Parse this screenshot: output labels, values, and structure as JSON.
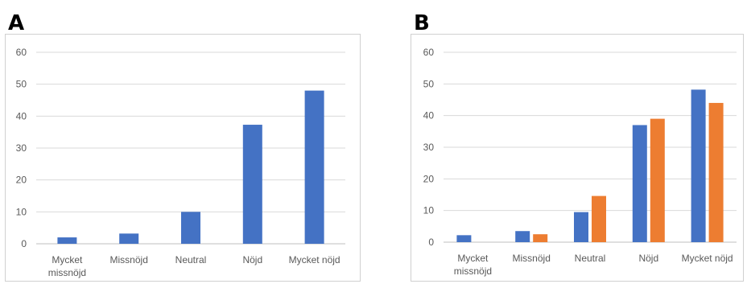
{
  "panels": [
    {
      "letter": "A"
    },
    {
      "letter": "B"
    }
  ],
  "chart_data": [
    {
      "type": "bar",
      "title": "",
      "categories": [
        [
          "Mycket",
          "missnöjd"
        ],
        [
          "Missnöjd"
        ],
        [
          "Neutral"
        ],
        [
          "Nöjd"
        ],
        [
          "Mycket nöjd"
        ]
      ],
      "series": [
        {
          "color": "#4472C4",
          "values": [
            2,
            3.2,
            10,
            37.3,
            48
          ]
        }
      ],
      "ylim": [
        0,
        60
      ],
      "yticks": [
        0,
        10,
        20,
        30,
        40,
        50,
        60
      ],
      "grid": true,
      "legend": "none"
    },
    {
      "type": "bar",
      "title": "",
      "categories": [
        [
          "Mycket",
          "missnöjd"
        ],
        [
          "Missnöjd"
        ],
        [
          "Neutral"
        ],
        [
          "Nöjd"
        ],
        [
          "Mycket nöjd"
        ]
      ],
      "series": [
        {
          "color": "#4472C4",
          "values": [
            2.2,
            3.5,
            9.5,
            37,
            48.2
          ]
        },
        {
          "color": "#ED7D31",
          "values": [
            0,
            2.5,
            14.6,
            39,
            44
          ]
        }
      ],
      "ylim": [
        0,
        60
      ],
      "yticks": [
        0,
        10,
        20,
        30,
        40,
        50,
        60
      ],
      "grid": true,
      "legend": "none"
    }
  ]
}
